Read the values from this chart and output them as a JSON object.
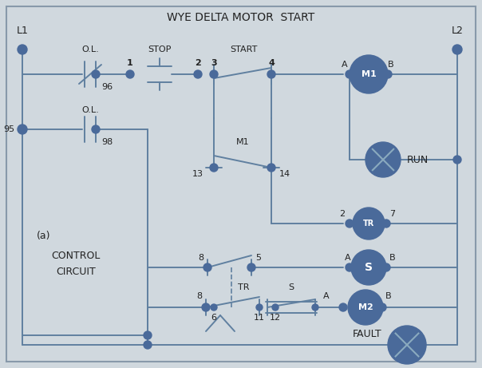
{
  "title": "WYE DELTA MOTOR  START",
  "bg_color": "#d0d8de",
  "line_color": "#6080a0",
  "dot_color": "#4a6a9a",
  "text_color": "#222222",
  "figsize": [
    6.04,
    4.61
  ],
  "dpi": 100,
  "xlim": [
    0,
    604
  ],
  "ylim": [
    0,
    461
  ]
}
